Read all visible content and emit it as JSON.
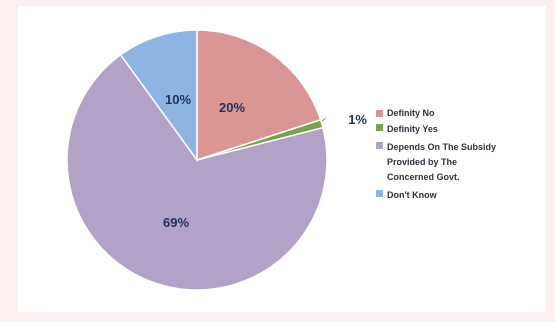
{
  "chart_data": {
    "type": "pie",
    "slices": [
      {
        "label": "Definity No",
        "value": 20,
        "text": "20%",
        "color": "#d99694"
      },
      {
        "label": "Definity Yes",
        "value": 1,
        "text": "1%",
        "color": "#77a34e"
      },
      {
        "label": "Depends On The Subsidy\nProvided by The\nConcerned Govt.",
        "value": 69,
        "text": "69%",
        "color": "#b3a2c7"
      },
      {
        "label": "Don't Know",
        "value": 10,
        "text": "10%",
        "color": "#8eb4e3"
      }
    ],
    "legend_position": "right",
    "start_angle_deg": 0,
    "direction": "clockwise"
  }
}
